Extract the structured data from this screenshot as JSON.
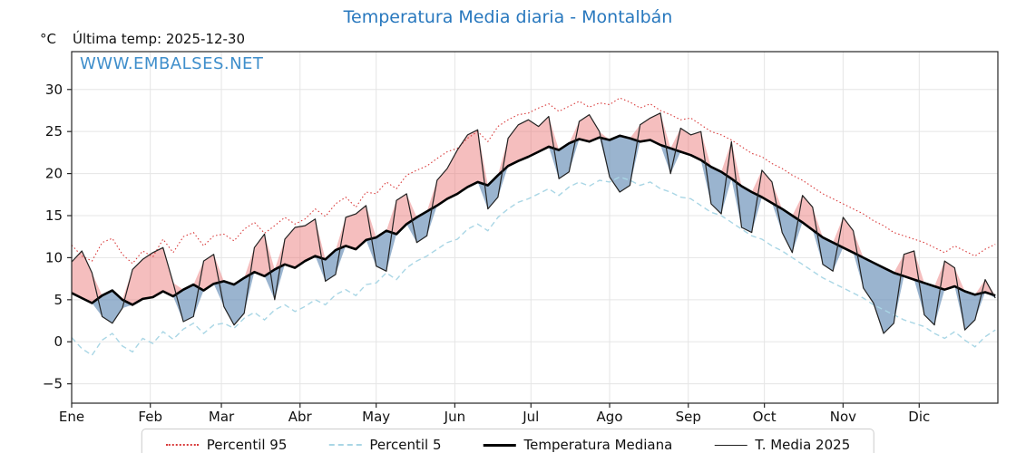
{
  "header": {
    "title": "Temperatura Media diaria - Montalbán",
    "unit_label": "°C",
    "last_temp": "Última temp: 2025-12-30",
    "watermark": "WWW.EMBALSES.NET"
  },
  "legend": {
    "items": [
      {
        "label": "Percentil 95",
        "style": "dotted",
        "color": "#d93a3a"
      },
      {
        "label": "Percentil 5",
        "style": "dashed",
        "color": "#a9d6e5"
      },
      {
        "label": "Temperatura Mediana",
        "style": "solid-thick",
        "color": "#000000"
      },
      {
        "label": "T. Media 2025",
        "style": "solid-thin",
        "color": "#222222"
      }
    ]
  },
  "chart_data": {
    "type": "line",
    "title": "Temperatura Media diaria - Montalbán",
    "ylabel": "°C",
    "ylim": [
      -7.3,
      34.5
    ],
    "yticks": [
      -5,
      0,
      5,
      10,
      15,
      20,
      25,
      30
    ],
    "x_months": [
      "Ene",
      "Feb",
      "Mar",
      "Abr",
      "May",
      "Jun",
      "Jul",
      "Ago",
      "Sep",
      "Oct",
      "Nov",
      "Dic"
    ],
    "month_start_days": [
      0,
      31,
      59,
      90,
      120,
      151,
      181,
      212,
      243,
      273,
      304,
      334
    ],
    "days_in_year": 365,
    "sample_step_days": 4,
    "grid": true,
    "legend_position": "bottom",
    "colors": {
      "title": "#2878be",
      "watermark": "#3e8ecb",
      "p95": "#d93a3a",
      "p5": "#a9d6e5",
      "median": "#000000",
      "t2025": "#222222",
      "fill_above": "rgba(233,110,110,0.45)",
      "fill_below": "rgba(100,140,182,0.65)",
      "grid": "#e5e5e5",
      "spine": "#262626",
      "tick_label": "#111111"
    },
    "series": [
      {
        "name": "Percentil 95",
        "role": "p95",
        "values": [
          11.5,
          10.2,
          9.6,
          11.8,
          12.3,
          10.4,
          9.3,
          10.8,
          10.1,
          12.2,
          10.6,
          12.5,
          13.0,
          11.4,
          12.6,
          12.8,
          12.0,
          13.4,
          14.2,
          12.9,
          13.8,
          14.8,
          14.0,
          14.6,
          15.8,
          14.9,
          16.4,
          17.2,
          16.0,
          17.8,
          17.6,
          19.0,
          18.2,
          19.8,
          20.4,
          20.9,
          21.8,
          22.6,
          23.0,
          24.2,
          25.0,
          23.8,
          25.6,
          26.4,
          27.0,
          27.2,
          27.8,
          28.3,
          27.4,
          28.0,
          28.6,
          27.9,
          28.4,
          28.2,
          29.0,
          28.5,
          27.8,
          28.3,
          27.5,
          27.0,
          26.4,
          26.6,
          25.8,
          25.0,
          24.6,
          24.0,
          23.2,
          22.4,
          22.0,
          21.2,
          20.6,
          19.8,
          19.2,
          18.4,
          17.6,
          17.0,
          16.4,
          15.8,
          15.2,
          14.4,
          13.8,
          13.0,
          12.6,
          12.2,
          11.8,
          11.2,
          10.6,
          11.4,
          10.8,
          10.2,
          11.0,
          11.6
        ]
      },
      {
        "name": "Percentil 5",
        "role": "p5",
        "values": [
          0.5,
          -0.8,
          -1.6,
          0.2,
          1.0,
          -0.5,
          -1.2,
          0.4,
          -0.2,
          1.2,
          0.3,
          1.5,
          2.2,
          1.0,
          2.0,
          2.2,
          1.6,
          2.8,
          3.5,
          2.6,
          3.8,
          4.4,
          3.6,
          4.2,
          5.0,
          4.4,
          5.6,
          6.2,
          5.5,
          6.8,
          7.0,
          8.2,
          7.4,
          8.8,
          9.6,
          10.2,
          11.0,
          11.8,
          12.2,
          13.4,
          14.0,
          13.2,
          14.8,
          15.8,
          16.6,
          17.0,
          17.6,
          18.2,
          17.4,
          18.4,
          19.0,
          18.5,
          19.2,
          19.0,
          19.6,
          19.2,
          18.6,
          19.0,
          18.2,
          17.8,
          17.2,
          17.0,
          16.2,
          15.4,
          15.0,
          14.2,
          13.4,
          12.6,
          12.2,
          11.4,
          10.8,
          10.0,
          9.2,
          8.4,
          7.6,
          7.0,
          6.4,
          5.8,
          5.2,
          4.4,
          3.8,
          3.2,
          2.6,
          2.2,
          1.8,
          1.0,
          0.4,
          1.2,
          0.2,
          -0.6,
          0.6,
          1.4
        ]
      },
      {
        "name": "Temperatura Mediana",
        "role": "median",
        "values": [
          5.8,
          5.2,
          4.6,
          5.5,
          6.1,
          5.0,
          4.4,
          5.1,
          5.3,
          6.0,
          5.4,
          6.2,
          6.8,
          6.1,
          6.9,
          7.2,
          6.8,
          7.6,
          8.3,
          7.8,
          8.6,
          9.2,
          8.8,
          9.6,
          10.2,
          9.8,
          10.9,
          11.4,
          11.0,
          12.1,
          12.4,
          13.2,
          12.8,
          14.0,
          14.8,
          15.5,
          16.2,
          17.0,
          17.6,
          18.4,
          19.0,
          18.6,
          19.8,
          20.9,
          21.5,
          22.0,
          22.6,
          23.2,
          22.8,
          23.6,
          24.1,
          23.8,
          24.3,
          24.0,
          24.5,
          24.2,
          23.8,
          24.0,
          23.4,
          23.0,
          22.6,
          22.2,
          21.6,
          20.8,
          20.2,
          19.4,
          18.5,
          17.8,
          17.2,
          16.5,
          15.8,
          15.0,
          14.2,
          13.3,
          12.4,
          11.8,
          11.2,
          10.6,
          10.0,
          9.4,
          8.8,
          8.2,
          7.8,
          7.4,
          7.0,
          6.6,
          6.2,
          6.6,
          6.0,
          5.6,
          5.9,
          5.5
        ]
      },
      {
        "name": "T. Media 2025",
        "role": "t2025",
        "values": [
          9.5,
          10.8,
          8.2,
          3.0,
          2.2,
          4.0,
          8.6,
          9.8,
          10.6,
          11.2,
          7.0,
          2.4,
          3.0,
          9.6,
          10.4,
          4.2,
          2.0,
          3.4,
          11.2,
          12.8,
          5.0,
          12.2,
          13.6,
          13.8,
          14.6,
          7.2,
          8.0,
          14.8,
          15.2,
          16.2,
          9.0,
          8.4,
          16.8,
          17.6,
          11.8,
          12.6,
          19.2,
          20.6,
          22.8,
          24.6,
          25.2,
          15.8,
          17.2,
          24.2,
          25.8,
          26.4,
          25.6,
          26.8,
          19.4,
          20.2,
          26.2,
          27.0,
          25.0,
          19.6,
          17.8,
          18.6,
          25.8,
          26.6,
          27.2,
          20.0,
          25.4,
          24.6,
          25.0,
          16.4,
          15.2,
          23.8,
          13.6,
          13.0,
          20.4,
          19.0,
          13.0,
          10.6,
          17.4,
          16.0,
          9.2,
          8.4,
          14.8,
          13.2,
          6.4,
          4.6,
          1.0,
          2.2,
          10.4,
          10.8,
          3.2,
          2.0,
          9.6,
          8.8,
          1.4,
          2.6,
          7.4,
          5.2
        ]
      }
    ]
  }
}
